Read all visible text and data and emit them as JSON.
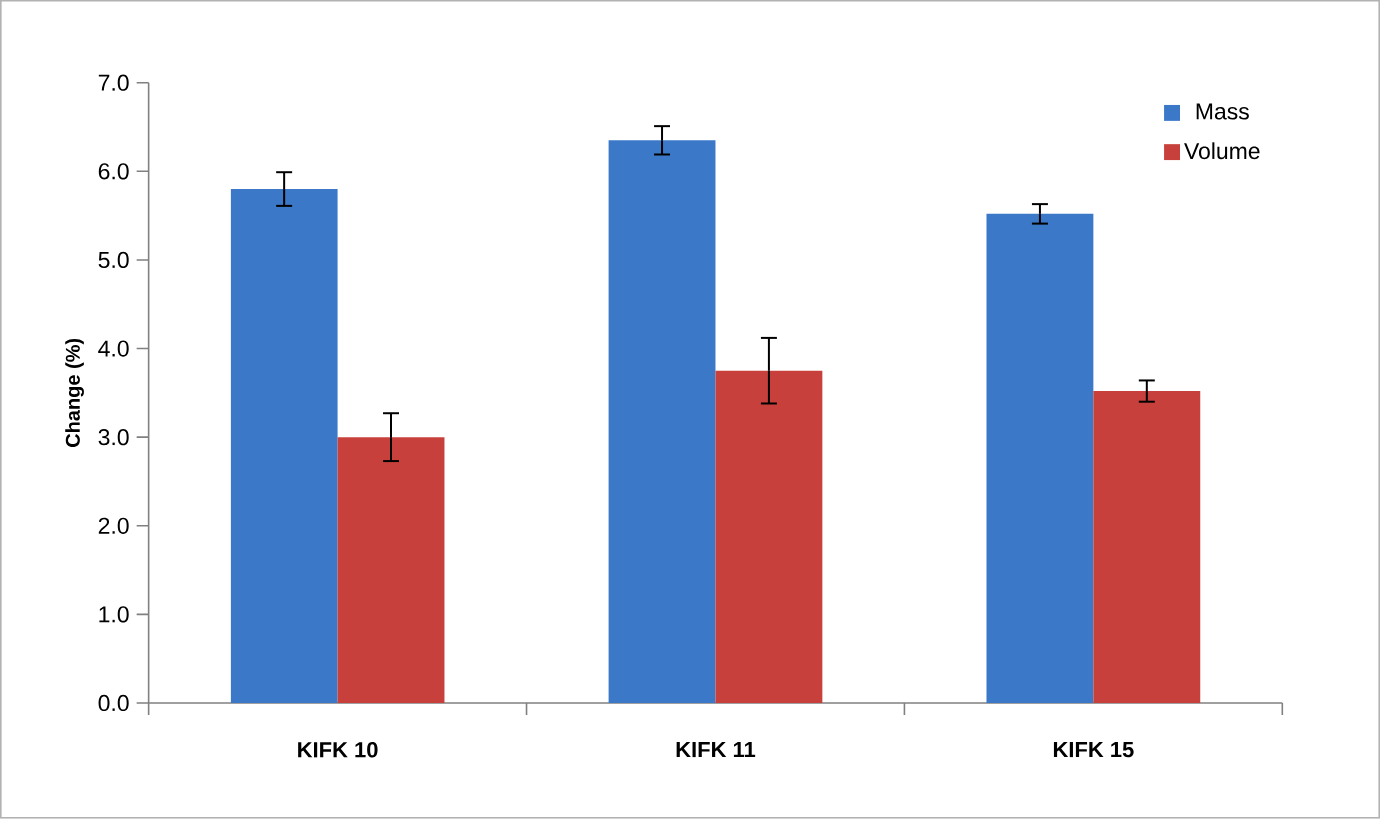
{
  "chart_data": {
    "type": "bar",
    "ylabel": "Change (%)",
    "categories": [
      "KIFK 10",
      "KIFK 11",
      "KIFK 15"
    ],
    "series": [
      {
        "name": "Mass",
        "color": "#3b78c8",
        "values": [
          5.8,
          6.35,
          5.52
        ],
        "errors": [
          0.19,
          0.16,
          0.11
        ]
      },
      {
        "name": "Volume",
        "color": "#c8403c",
        "values": [
          3.0,
          3.75,
          3.52
        ],
        "errors": [
          0.27,
          0.37,
          0.12
        ]
      }
    ],
    "ylim": [
      0,
      7
    ],
    "yticks": [
      {
        "value": 0,
        "label": "0.0"
      },
      {
        "value": 1,
        "label": "1.0"
      },
      {
        "value": 2,
        "label": "2.0"
      },
      {
        "value": 3,
        "label": "3.0"
      },
      {
        "value": 4,
        "label": "4.0"
      },
      {
        "value": 5,
        "label": "5.0"
      },
      {
        "value": 6,
        "label": "6.0"
      },
      {
        "value": 7,
        "label": "7.0"
      }
    ],
    "grid": false,
    "legend": "top right"
  }
}
